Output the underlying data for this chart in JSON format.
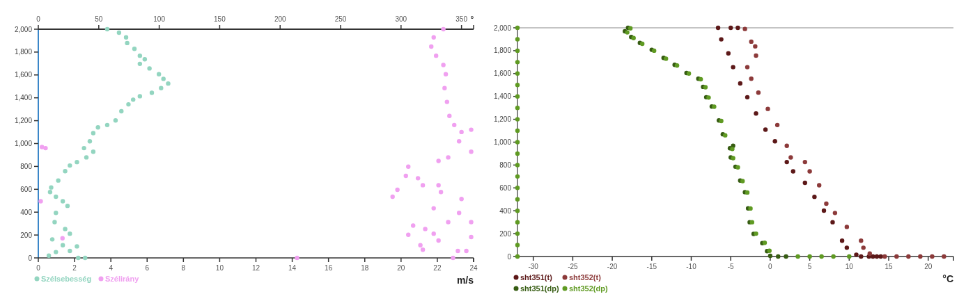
{
  "chart_data": [
    {
      "type": "scatter",
      "xlabel": "m/s",
      "x2label": "°",
      "xlim": [
        0,
        24
      ],
      "xticks": [
        0,
        2,
        4,
        6,
        8,
        10,
        12,
        14,
        16,
        18,
        20,
        22,
        24
      ],
      "x2lim": [
        0,
        360
      ],
      "x2ticks": [
        0,
        50,
        100,
        150,
        200,
        250,
        300,
        350
      ],
      "ylim": [
        0,
        2000
      ],
      "yticks": [
        0,
        200,
        400,
        600,
        800,
        {
          "value": 1000,
          "label": "1,000"
        },
        {
          "value": 1200,
          "label": "1,200"
        },
        {
          "value": 1400,
          "label": "1,400"
        },
        {
          "value": 1600,
          "label": "1,600"
        },
        {
          "value": 1800,
          "label": "1,800"
        },
        {
          "value": 2000,
          "label": "2,000"
        }
      ],
      "grid": false,
      "legend": "bottom left",
      "marker": "circle",
      "series": [
        {
          "name": "Szélsebesség",
          "color": "#93d5c0",
          "x": [
            3.8,
            4.45,
            4.84,
            4.9,
            5.3,
            5.6,
            5.87,
            5.6,
            6.13,
            6.65,
            6.9,
            7.16,
            6.77,
            6.26,
            5.6,
            5.23,
            4.97,
            4.58,
            4.26,
            3.8,
            3.29,
            3.03,
            2.84,
            2.52,
            3.03,
            2.65,
            2.13,
            1.74,
            1.48,
            1.1,
            0.71,
            0.65,
            0.97,
            1.35,
            1.61,
            0.97,
            0.9,
            1.48,
            1.74,
            0.77,
            1.35,
            2.13,
            1.74,
            0.97,
            0.58,
            2.2,
            2.58
          ],
          "values": [
            2000,
            1970,
            1929,
            1879,
            1828,
            1768,
            1737,
            1697,
            1657,
            1606,
            1566,
            1525,
            1485,
            1444,
            1414,
            1384,
            1343,
            1283,
            1202,
            1162,
            1141,
            1091,
            1020,
            960,
            929,
            879,
            838,
            808,
            758,
            677,
            616,
            576,
            535,
            495,
            455,
            394,
            313,
            253,
            212,
            162,
            111,
            101,
            61,
            51,
            20,
            0,
            0
          ]
        },
        {
          "name": "Szélirány",
          "color": "#f0a0f0",
          "axis": "x2",
          "x": [
            335,
            327,
            325,
            329,
            335,
            337,
            336,
            338,
            340,
            344,
            350,
            358,
            348,
            358,
            339,
            331,
            306,
            304,
            314,
            297,
            293,
            318,
            331,
            333,
            350,
            327,
            348,
            339,
            358,
            310,
            320,
            327,
            306,
            358,
            331,
            316,
            318,
            347,
            354,
            3,
            6,
            2,
            20,
            214,
            343
          ],
          "values": [
            2000,
            1929,
            1848,
            1768,
            1687,
            1606,
            1485,
            1364,
            1242,
            1162,
            1101,
            1121,
            1020,
            929,
            879,
            848,
            798,
            717,
            697,
            596,
            535,
            636,
            636,
            576,
            515,
            434,
            394,
            313,
            313,
            283,
            253,
            212,
            202,
            182,
            152,
            111,
            71,
            61,
            61,
            970,
            960,
            495,
            172,
            0,
            0
          ]
        }
      ]
    },
    {
      "type": "scatter",
      "xlabel": "°C",
      "xlim": [
        -32,
        23.2
      ],
      "xticks": [
        -30,
        -25,
        -20,
        -15,
        -10,
        -5,
        0,
        5,
        10,
        15,
        20
      ],
      "ylim": [
        0,
        2000
      ],
      "yticks": [
        0,
        200,
        400,
        600,
        800,
        {
          "value": 1000,
          "label": "1,000"
        },
        {
          "value": 1200,
          "label": "1,200"
        },
        {
          "value": 1400,
          "label": "1,400"
        },
        {
          "value": 1600,
          "label": "1,600"
        },
        {
          "value": 1800,
          "label": "1,800"
        },
        {
          "value": 2000,
          "label": "2,000"
        }
      ],
      "grid": false,
      "legend": "bottom left",
      "marker": "circle",
      "series": [
        {
          "name": "sht351(t)",
          "color": "#5c1818",
          "x": [
            -6.6,
            -5,
            -4.1,
            -6.2,
            -5.3,
            -4.7,
            -3.8,
            -2.9,
            -1.8,
            -0.6,
            0.6,
            2.1,
            2.9,
            4.4,
            5.6,
            6.8,
            7.9,
            9.1,
            9.7,
            10.9,
            11.5,
            12.5,
            13,
            13.5,
            14
          ],
          "values": [
            2000,
            2000,
            2000,
            1899,
            1777,
            1656,
            1514,
            1393,
            1251,
            1109,
            1008,
            826,
            745,
            644,
            522,
            401,
            300,
            138,
            77,
            16,
            0,
            0,
            0,
            0,
            0
          ]
        },
        {
          "name": "sht352(t)",
          "color": "#8c3a3a",
          "x": [
            -3.2,
            -2.4,
            -1.9,
            -1.8,
            -2.9,
            -2.4,
            -1.5,
            -0.3,
            0.9,
            2.1,
            2.6,
            4.4,
            5,
            6.2,
            7.1,
            8.2,
            9.7,
            11.5,
            11.8,
            12.6,
            14.5,
            16,
            17.5,
            19,
            20.5,
            22
          ],
          "values": [
            1990,
            1879,
            1838,
            1757,
            1656,
            1555,
            1433,
            1291,
            1150,
            968,
            866,
            826,
            745,
            623,
            462,
            381,
            259,
            138,
            77,
            26,
            0,
            0,
            0,
            0,
            0,
            0
          ]
        },
        {
          "name": "sht351(dp)",
          "color": "#365c12",
          "x": [
            -18,
            -18.4,
            -17.6,
            -16.5,
            -15,
            -13.5,
            -12.1,
            -10.6,
            -9.1,
            -8.5,
            -8.1,
            -7.4,
            -6.5,
            -6,
            -4.7,
            -5.1,
            -5,
            -4.4,
            -3.8,
            -3.2,
            -2.8,
            -2.6,
            -2.1,
            -1,
            -0.4,
            0,
            1,
            2
          ],
          "values": [
            2000,
            1970,
            1919,
            1868,
            1808,
            1737,
            1676,
            1605,
            1555,
            1484,
            1393,
            1312,
            1190,
            1069,
            968,
            947,
            866,
            785,
            664,
            563,
            421,
            300,
            198,
            117,
            47,
            6,
            0,
            0
          ]
        },
        {
          "name": "sht352(dp)",
          "color": "#5f9a22",
          "x": [
            -17.7,
            -18.1,
            -17.3,
            -16.2,
            -14.7,
            -13.2,
            -11.8,
            -10.3,
            -8.8,
            -8.2,
            -7.8,
            -7.1,
            -6.2,
            -5.7,
            -4.8,
            -4.7,
            -4.1,
            -3.5,
            -2.9,
            -2.5,
            -2.3,
            -1.8,
            -0.7,
            -0.1,
            3.5,
            5,
            6.5,
            8,
            10,
            -32,
            -32,
            -32,
            -32,
            -32,
            -32,
            -32,
            -32,
            -32,
            -32,
            -32,
            -32,
            -32,
            -32,
            -32,
            -32,
            -32,
            -32,
            -32,
            -32,
            -32
          ],
          "values": [
            1995,
            1960,
            1910,
            1860,
            1800,
            1730,
            1670,
            1600,
            1550,
            1480,
            1390,
            1310,
            1185,
            1060,
            940,
            860,
            780,
            660,
            560,
            420,
            300,
            200,
            120,
            50,
            0,
            0,
            0,
            0,
            0,
            0,
            100,
            200,
            300,
            400,
            500,
            600,
            700,
            800,
            900,
            1000,
            1100,
            1200,
            1300,
            1400,
            1500,
            1600,
            1700,
            1800,
            1900,
            2000
          ]
        }
      ]
    }
  ]
}
